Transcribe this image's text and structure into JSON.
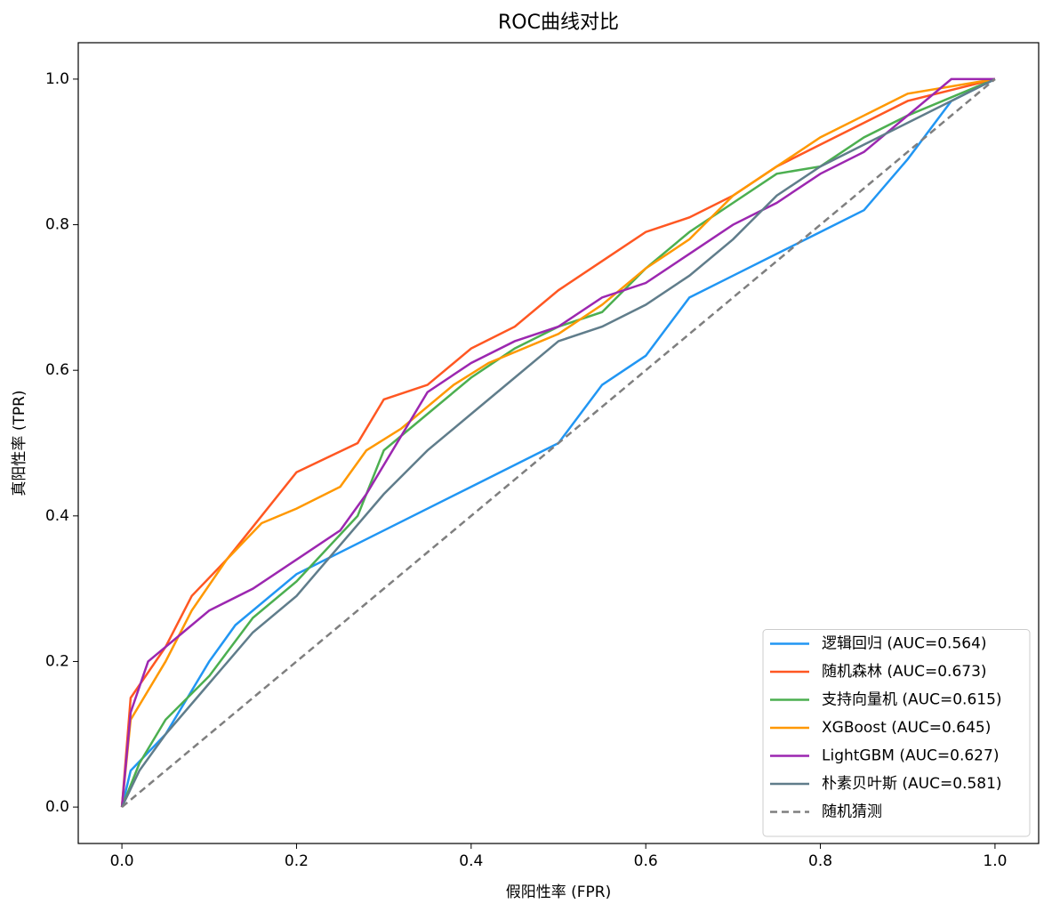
{
  "chart_data": {
    "type": "line",
    "title": "ROC曲线对比",
    "x_label": "假阳性率 (FPR)",
    "y_label": "真阳性率 (TPR)",
    "xlim": [
      -0.05,
      1.05
    ],
    "ylim": [
      -0.05,
      1.05
    ],
    "xticks": [
      {
        "value": 0,
        "label": "0.0"
      },
      0.2,
      0.4,
      0.6,
      0.8,
      {
        "value": 1,
        "label": "1.0"
      }
    ],
    "yticks": [
      {
        "value": 0,
        "label": "0.0"
      },
      0.2,
      0.4,
      0.6,
      0.8,
      {
        "value": 1,
        "label": "1.0"
      }
    ],
    "grid": false,
    "legend": "lower right",
    "series": [
      {
        "name": "逻辑回归 (AUC=0.564)",
        "color": "#2196f3",
        "linestyle": "solid",
        "x": [
          0,
          0.01,
          0.05,
          0.1,
          0.13,
          0.2,
          0.3,
          0.4,
          0.5,
          0.55,
          0.6,
          0.65,
          0.7,
          0.75,
          0.8,
          0.85,
          0.9,
          0.95,
          1
        ],
        "values": [
          0,
          0.05,
          0.1,
          0.2,
          0.25,
          0.32,
          0.38,
          0.44,
          0.5,
          0.58,
          0.62,
          0.7,
          0.73,
          0.76,
          0.79,
          0.82,
          0.89,
          0.97,
          1
        ]
      },
      {
        "name": "随机森林 (AUC=0.673)",
        "color": "#ff5722",
        "linestyle": "solid",
        "x": [
          0,
          0.01,
          0.05,
          0.08,
          0.12,
          0.2,
          0.27,
          0.3,
          0.35,
          0.4,
          0.45,
          0.5,
          0.55,
          0.6,
          0.65,
          0.7,
          0.75,
          0.8,
          0.85,
          0.9,
          1
        ],
        "values": [
          0,
          0.15,
          0.22,
          0.29,
          0.34,
          0.46,
          0.5,
          0.56,
          0.58,
          0.63,
          0.66,
          0.71,
          0.75,
          0.79,
          0.81,
          0.84,
          0.88,
          0.91,
          0.94,
          0.97,
          1
        ]
      },
      {
        "name": "支持向量机 (AUC=0.615)",
        "color": "#4caf50",
        "linestyle": "solid",
        "x": [
          0,
          0.02,
          0.05,
          0.1,
          0.15,
          0.2,
          0.27,
          0.3,
          0.35,
          0.4,
          0.45,
          0.5,
          0.55,
          0.6,
          0.65,
          0.7,
          0.75,
          0.8,
          0.85,
          0.9,
          1
        ],
        "values": [
          0,
          0.06,
          0.12,
          0.18,
          0.26,
          0.31,
          0.4,
          0.49,
          0.54,
          0.59,
          0.63,
          0.66,
          0.68,
          0.74,
          0.79,
          0.83,
          0.87,
          0.88,
          0.92,
          0.95,
          1
        ]
      },
      {
        "name": "XGBoost (AUC=0.645)",
        "color": "#ff9800",
        "linestyle": "solid",
        "x": [
          0,
          0.01,
          0.05,
          0.08,
          0.12,
          0.16,
          0.2,
          0.25,
          0.28,
          0.32,
          0.38,
          0.42,
          0.5,
          0.55,
          0.6,
          0.65,
          0.7,
          0.75,
          0.8,
          0.85,
          0.9,
          1
        ],
        "values": [
          0,
          0.12,
          0.2,
          0.27,
          0.34,
          0.39,
          0.41,
          0.44,
          0.49,
          0.52,
          0.58,
          0.61,
          0.65,
          0.69,
          0.74,
          0.78,
          0.84,
          0.88,
          0.92,
          0.95,
          0.98,
          1
        ]
      },
      {
        "name": "LightGBM (AUC=0.627)",
        "color": "#9c27b0",
        "linestyle": "solid",
        "x": [
          0,
          0.01,
          0.03,
          0.07,
          0.1,
          0.15,
          0.2,
          0.25,
          0.28,
          0.35,
          0.4,
          0.45,
          0.5,
          0.55,
          0.6,
          0.65,
          0.7,
          0.75,
          0.8,
          0.85,
          0.9,
          0.95,
          1
        ],
        "values": [
          0,
          0.13,
          0.2,
          0.24,
          0.27,
          0.3,
          0.34,
          0.38,
          0.43,
          0.57,
          0.61,
          0.64,
          0.66,
          0.7,
          0.72,
          0.76,
          0.8,
          0.83,
          0.87,
          0.9,
          0.95,
          1,
          1
        ]
      },
      {
        "name": "朴素贝叶斯 (AUC=0.581)",
        "color": "#607d8b",
        "linestyle": "solid",
        "x": [
          0,
          0.02,
          0.05,
          0.1,
          0.15,
          0.2,
          0.25,
          0.3,
          0.35,
          0.4,
          0.45,
          0.5,
          0.55,
          0.6,
          0.65,
          0.7,
          0.75,
          0.8,
          0.85,
          0.9,
          0.95,
          1
        ],
        "values": [
          0,
          0.05,
          0.1,
          0.17,
          0.24,
          0.29,
          0.36,
          0.43,
          0.49,
          0.54,
          0.59,
          0.64,
          0.66,
          0.69,
          0.73,
          0.78,
          0.84,
          0.88,
          0.91,
          0.94,
          0.97,
          1
        ]
      },
      {
        "name": "随机猜测",
        "color": "#7f7f7f",
        "linestyle": "dashed",
        "x": [
          0,
          1
        ],
        "values": [
          0,
          1
        ]
      }
    ]
  }
}
